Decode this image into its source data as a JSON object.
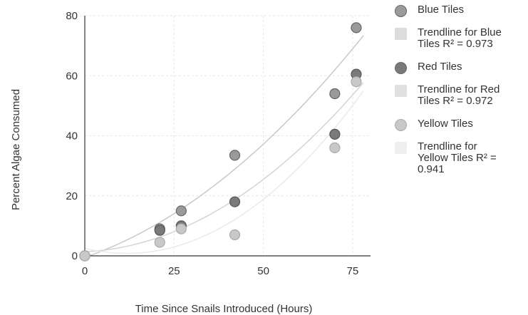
{
  "chart_data": {
    "type": "scatter",
    "title": "",
    "xlabel": "Time Since Snails Introduced (Hours)",
    "ylabel": "Percent Algae Consumed",
    "xlim": [
      0,
      80
    ],
    "ylim": [
      0,
      80
    ],
    "xticks": [
      "0",
      "25",
      "50",
      "75"
    ],
    "yticks": [
      "0",
      "20",
      "40",
      "60",
      "80"
    ],
    "grid": true,
    "legend": "right",
    "series": [
      {
        "name": "Blue Tiles",
        "color": "#9a9a9a",
        "x": [
          0,
          21,
          27,
          42,
          70,
          76
        ],
        "y": [
          0,
          9,
          15,
          33.5,
          54,
          76
        ]
      },
      {
        "name": "Red Tiles",
        "color": "#7a7a7a",
        "x": [
          0,
          21,
          27,
          42,
          70,
          76
        ],
        "y": [
          0,
          8.5,
          10,
          18,
          40.5,
          60.5
        ]
      },
      {
        "name": "Yellow Tiles",
        "color": "#c8c8c8",
        "x": [
          0,
          21,
          27,
          42,
          70,
          76
        ],
        "y": [
          0,
          4.5,
          9,
          7,
          36,
          58
        ]
      }
    ],
    "trendlines": [
      {
        "name": "Trendline for Blue Tiles R² = 0.973",
        "color": "#c8c8c8"
      },
      {
        "name": "Trendline for Red Tiles R² = 0.972",
        "color": "#d4d4d4"
      },
      {
        "name": "Trendline for Yellow Tiles R² = 0.941",
        "color": "#eaeaea"
      }
    ]
  }
}
